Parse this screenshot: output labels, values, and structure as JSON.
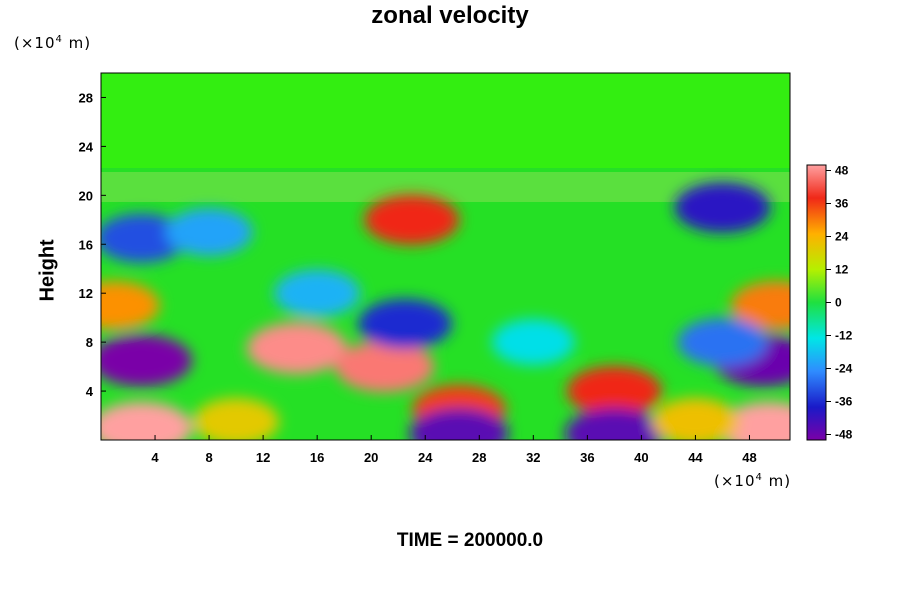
{
  "chart_data": {
    "type": "heatmap",
    "title": "zonal velocity",
    "ylabel": "Height",
    "xlabel": "",
    "y_unit_prefix": "(×10",
    "y_unit_exp": "4",
    "y_unit_suffix": " m)",
    "x_unit_prefix": "(×10",
    "x_unit_exp": "4",
    "x_unit_suffix": " m)",
    "footer": "TIME = 200000.0",
    "xlim": [
      0,
      51
    ],
    "ylim": [
      0,
      30
    ],
    "x_ticks": [
      4,
      8,
      12,
      16,
      20,
      24,
      28,
      32,
      36,
      40,
      44,
      48
    ],
    "y_ticks": [
      4,
      8,
      12,
      16,
      20,
      24,
      28
    ],
    "colorbar": {
      "range": [
        -50,
        50
      ],
      "ticks": [
        48,
        36,
        24,
        12,
        0,
        -12,
        -24,
        -36,
        -48
      ]
    },
    "features": [
      {
        "x": 3,
        "y": 6.5,
        "value": -50
      },
      {
        "x": 49,
        "y": 6.5,
        "value": -48
      },
      {
        "x": 14.5,
        "y": 7.5,
        "value": 48
      },
      {
        "x": 21,
        "y": 6,
        "value": 46
      },
      {
        "x": 23,
        "y": 18,
        "value": 38
      },
      {
        "x": 26.5,
        "y": 2.5,
        "value": 36
      },
      {
        "x": 38,
        "y": 4,
        "value": 38
      },
      {
        "x": 3,
        "y": 1,
        "value": 50
      },
      {
        "x": 49.5,
        "y": 1,
        "value": 50
      },
      {
        "x": 46,
        "y": 19,
        "value": -40
      },
      {
        "x": 3,
        "y": 16.5,
        "value": -32
      },
      {
        "x": 22.5,
        "y": 9.5,
        "value": -36
      },
      {
        "x": 26.5,
        "y": 0.5,
        "value": -46
      },
      {
        "x": 38,
        "y": 0.5,
        "value": -46
      },
      {
        "x": 50,
        "y": 11,
        "value": 30
      },
      {
        "x": 1,
        "y": 11,
        "value": 28
      },
      {
        "x": 46,
        "y": 8,
        "value": -28
      },
      {
        "x": 10,
        "y": 1.5,
        "value": 20
      },
      {
        "x": 44,
        "y": 1.5,
        "value": 22
      },
      {
        "x": 16,
        "y": 12,
        "value": -20
      },
      {
        "x": 32,
        "y": 8,
        "value": -14
      },
      {
        "x": 8,
        "y": 17,
        "value": -22
      }
    ],
    "upper_region_value": 0
  }
}
